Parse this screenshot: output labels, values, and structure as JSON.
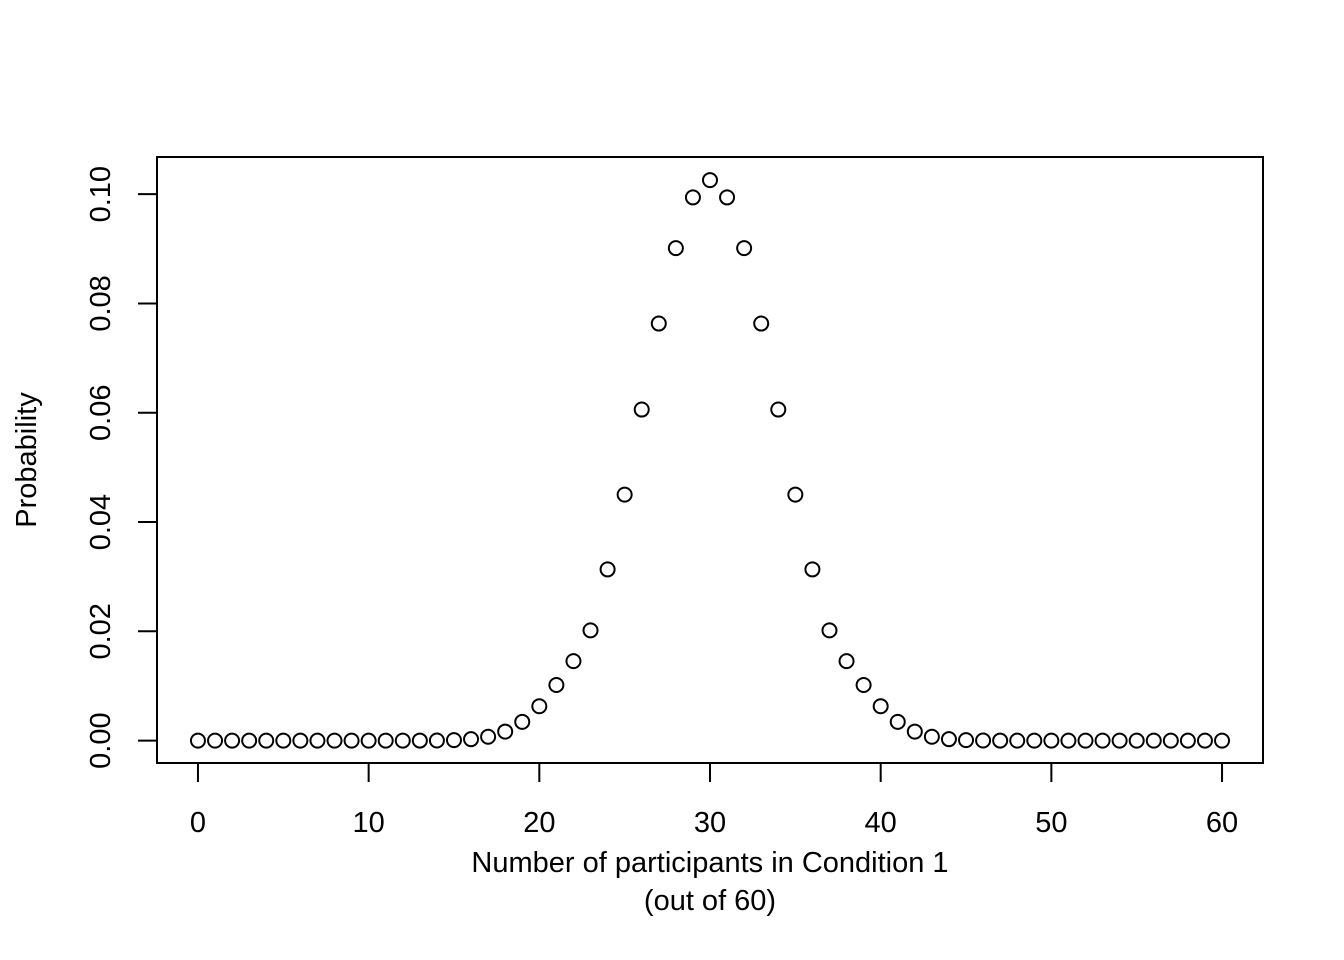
{
  "chart_data": {
    "type": "scatter",
    "title": "",
    "xlabel_line1": "Number of participants in Condition 1",
    "xlabel_line2": "(out of 60)",
    "ylabel": "Probability",
    "xlim": [
      -2.4,
      62.4
    ],
    "ylim": [
      -0.0041,
      0.1068
    ],
    "xticks": [
      0,
      10,
      20,
      30,
      40,
      50,
      60
    ],
    "xtick_labels": [
      "0",
      "10",
      "20",
      "30",
      "40",
      "50",
      "60"
    ],
    "yticks": [
      0,
      0.02,
      0.04,
      0.06,
      0.08,
      0.1
    ],
    "ytick_labels": [
      "0.00",
      "0.02",
      "0.04",
      "0.06",
      "0.08",
      "0.10"
    ],
    "grid": false,
    "marker": "open-circle",
    "point_color": "#000000",
    "x": [
      0,
      1,
      2,
      3,
      4,
      5,
      6,
      7,
      8,
      9,
      10,
      11,
      12,
      13,
      14,
      15,
      16,
      17,
      18,
      19,
      20,
      21,
      22,
      23,
      24,
      25,
      26,
      27,
      28,
      29,
      30,
      31,
      32,
      33,
      34,
      35,
      36,
      37,
      38,
      39,
      40,
      41,
      42,
      43,
      44,
      45,
      46,
      47,
      48,
      49,
      50,
      51,
      52,
      53,
      54,
      55,
      56,
      57,
      58,
      59,
      60
    ],
    "y": [
      0,
      0,
      0,
      0,
      0,
      0,
      0,
      0,
      0,
      0,
      0,
      0,
      0,
      5e-06,
      2.2e-05,
      8.3e-05,
      0.000259,
      0.000699,
      0.001649,
      0.003427,
      0.006287,
      0.010178,
      0.014539,
      0.020171,
      0.031327,
      0.045012,
      0.060585,
      0.076322,
      0.090123,
      0.099404,
      0.102578,
      0.099404,
      0.090123,
      0.076322,
      0.060585,
      0.045012,
      0.031327,
      0.020171,
      0.014539,
      0.010178,
      0.006287,
      0.003427,
      0.001649,
      0.000699,
      0.000259,
      8.3e-05,
      2.2e-05,
      5e-06,
      0,
      0,
      0,
      0,
      0,
      0,
      0,
      0,
      0,
      0,
      0,
      0,
      0
    ]
  }
}
